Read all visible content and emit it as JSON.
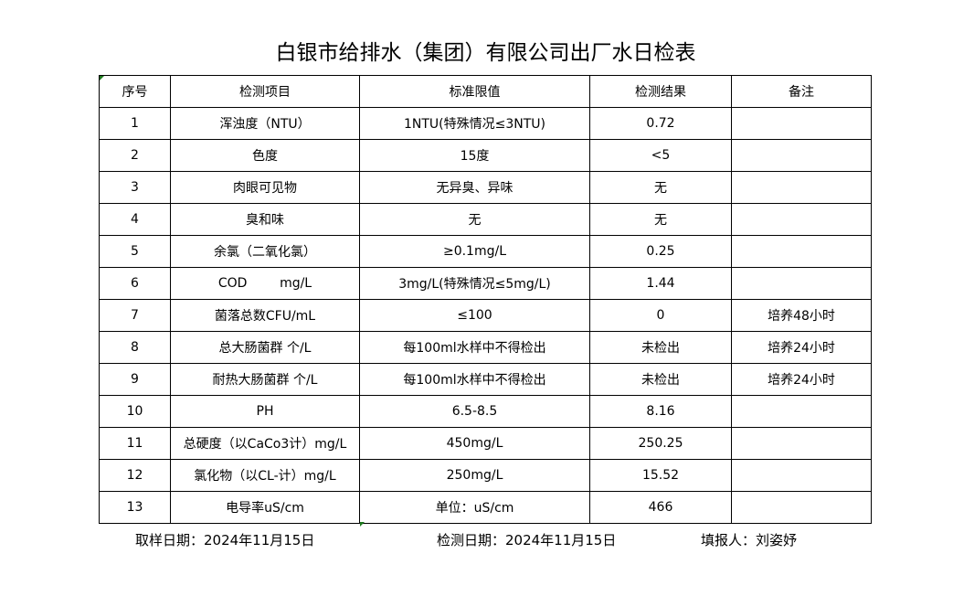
{
  "title": "白银市给排水（集团）有限公司出厂水日检表",
  "headers": [
    "序号",
    "检测项目",
    "标准限值",
    "检测结果",
    "备注"
  ],
  "rows": [
    [
      "1",
      "浑浊度（NTU）",
      "1NTU(特殊情况≤3NTU)",
      "0.72",
      ""
    ],
    [
      "2",
      "色度",
      "15度",
      "<5",
      ""
    ],
    [
      "3",
      "肉眼可见物",
      "无异臭、异味",
      "无",
      ""
    ],
    [
      "4",
      "臭和味",
      "无",
      "无",
      ""
    ],
    [
      "5",
      "余氯（二氧化氯）",
      "≥0.1mg/L",
      "0.25",
      ""
    ],
    [
      "6",
      "COD        mg/L",
      "3mg/L(特殊情况≤5mg/L)",
      "1.44",
      ""
    ],
    [
      "7",
      "菌落总数CFU/mL",
      "≤100",
      "0",
      "培养48小时"
    ],
    [
      "8",
      "总大肠菌群 个/L",
      "每100ml水样中不得检出",
      "未检出",
      "培养24小时"
    ],
    [
      "9",
      "耐热大肠菌群 个/L",
      "每100ml水样中不得检出",
      "未检出",
      "培养24小时"
    ],
    [
      "10",
      "PH",
      "6.5-8.5",
      "8.16",
      ""
    ],
    [
      "11",
      "总硬度（以CaCo3计）mg/L",
      "450mg/L",
      "250.25",
      ""
    ],
    [
      "12",
      "氯化物（以CL-计）mg/L",
      "250mg/L",
      "15.52",
      ""
    ],
    [
      "13",
      "电导率uS/cm",
      "单位：uS/cm",
      "466",
      ""
    ]
  ],
  "footer": {
    "sampling_date": "取样日期：2024年11月15日",
    "test_date": "检测日期：2024年11月15日",
    "reporter": "填报人：刘姿妤"
  }
}
